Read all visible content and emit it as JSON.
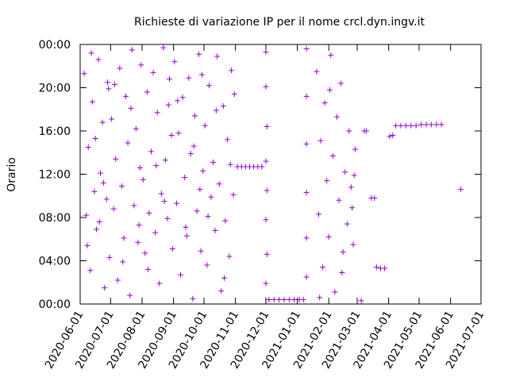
{
  "chart_data": {
    "type": "scatter",
    "title": "Richieste di variazione IP per il nome crcl.dyn.ingv.it",
    "y_label": "Orario",
    "color": "#9400d3",
    "marker": "+",
    "x": [
      "2020-06-05",
      "2020-06-07",
      "2020-06-09",
      "2020-06-11",
      "2020-06-13",
      "2020-06-15",
      "2020-06-17",
      "2020-06-19",
      "2020-06-21",
      "2020-06-23",
      "2020-06-25",
      "2020-06-27",
      "2020-06-29",
      "2020-06-08",
      "2020-06-12",
      "2020-06-16",
      "2020-06-20",
      "2020-06-24",
      "2020-06-28",
      "2020-06-30",
      "2020-07-02",
      "2020-07-04",
      "2020-07-06",
      "2020-07-08",
      "2020-07-10",
      "2020-07-12",
      "2020-07-14",
      "2020-07-16",
      "2020-07-18",
      "2020-07-20",
      "2020-07-22",
      "2020-07-24",
      "2020-07-26",
      "2020-07-28",
      "2020-07-30",
      "2020-07-05",
      "2020-07-13",
      "2020-07-21",
      "2020-07-29",
      "2020-07-31",
      "2020-08-02",
      "2020-08-04",
      "2020-08-06",
      "2020-08-08",
      "2020-08-10",
      "2020-08-12",
      "2020-08-14",
      "2020-08-16",
      "2020-08-18",
      "2020-08-20",
      "2020-08-22",
      "2020-08-24",
      "2020-08-26",
      "2020-08-28",
      "2020-08-30",
      "2020-08-07",
      "2020-08-15",
      "2020-08-23",
      "2020-08-27",
      "2020-08-31",
      "2020-09-02",
      "2020-09-04",
      "2020-09-06",
      "2020-09-08",
      "2020-09-10",
      "2020-09-12",
      "2020-09-14",
      "2020-09-16",
      "2020-09-18",
      "2020-09-20",
      "2020-09-22",
      "2020-09-24",
      "2020-09-26",
      "2020-09-28",
      "2020-09-30",
      "2020-09-05",
      "2020-09-13",
      "2020-09-21",
      "2020-09-27",
      "2020-09-29",
      "2020-10-02",
      "2020-10-04",
      "2020-10-06",
      "2020-10-08",
      "2020-10-10",
      "2020-10-12",
      "2020-10-14",
      "2020-10-16",
      "2020-10-18",
      "2020-10-20",
      "2020-10-22",
      "2020-10-24",
      "2020-10-26",
      "2020-10-28",
      "2020-10-30",
      "2020-10-05",
      "2020-10-13",
      "2020-10-21",
      "2020-10-27",
      "2020-10-31",
      "2020-11-03",
      "2020-11-07",
      "2020-11-11",
      "2020-11-15",
      "2020-11-19",
      "2020-11-23",
      "2020-11-27",
      "2020-12-01",
      "2020-12-01",
      "2020-12-02",
      "2020-12-01",
      "2020-12-02",
      "2020-12-01",
      "2020-12-02",
      "2020-12-01",
      "2020-12-04",
      "2020-12-09",
      "2020-12-14",
      "2020-12-19",
      "2020-12-24",
      "2020-12-29",
      "2021-01-03",
      "2021-01-07",
      "2021-01-10",
      "2021-01-10",
      "2021-01-10",
      "2021-01-10",
      "2021-01-10",
      "2021-01-10",
      "2021-01-20",
      "2021-01-22",
      "2021-01-24",
      "2021-01-26",
      "2021-01-28",
      "2021-01-30",
      "2021-02-01",
      "2021-02-03",
      "2021-02-05",
      "2021-02-07",
      "2021-02-09",
      "2021-02-11",
      "2021-02-13",
      "2021-02-15",
      "2021-02-17",
      "2021-02-19",
      "2021-02-21",
      "2021-02-23",
      "2021-02-25",
      "2021-02-27",
      "2021-01-23",
      "2021-02-02",
      "2021-02-14",
      "2021-02-24",
      "2021-02-26",
      "2021-03-05",
      "2021-03-08",
      "2021-03-10",
      "2021-03-15",
      "2021-03-18",
      "2021-03-20",
      "2021-03-24",
      "2021-03-28",
      "2021-04-02",
      "2021-04-05",
      "2021-04-08",
      "2021-04-13",
      "2021-04-18",
      "2021-04-23",
      "2021-04-28",
      "2021-05-03",
      "2021-05-08",
      "2021-05-13",
      "2021-05-18",
      "2021-05-23",
      "2021-06-11"
    ],
    "values": [
      21.3,
      8.2,
      14.5,
      3.1,
      18.7,
      10.4,
      6.9,
      22.6,
      12.1,
      16.8,
      1.5,
      9.7,
      19.9,
      5.4,
      23.2,
      15.3,
      7.6,
      11.2,
      20.5,
      4.3,
      17.1,
      8.8,
      13.4,
      2.2,
      21.8,
      10.9,
      6.1,
      19.2,
      14.9,
      0.8,
      23.5,
      9.1,
      16.2,
      5.7,
      12.6,
      20.3,
      3.9,
      18.1,
      7.3,
      22.1,
      11.5,
      4.7,
      19.6,
      8.4,
      14.1,
      21.4,
      6.6,
      17.7,
      1.9,
      10.2,
      23.7,
      13.3,
      7.9,
      20.8,
      15.6,
      3.2,
      12.8,
      9.5,
      18.4,
      5.1,
      22.4,
      9.3,
      15.8,
      2.7,
      19.1,
      11.7,
      6.3,
      20.9,
      13.9,
      0.5,
      17.4,
      8.6,
      23.1,
      4.9,
      12.3,
      18.8,
      7.1,
      14.6,
      10.6,
      21.2,
      16.5,
      3.6,
      20.2,
      9.9,
      13.1,
      6.8,
      22.9,
      11.1,
      1.2,
      18.3,
      7.7,
      15.2,
      4.4,
      21.6,
      10.1,
      8.1,
      17.9,
      2.4,
      12.9,
      19.4,
      12.7,
      12.7,
      12.7,
      12.7,
      12.7,
      12.7,
      12.7,
      23.3,
      20.1,
      16.4,
      13.2,
      10.5,
      7.8,
      4.6,
      1.9,
      0.4,
      0.4,
      0.4,
      0.4,
      0.4,
      0.4,
      0.4,
      0.4,
      23.6,
      19.2,
      14.8,
      10.3,
      6.1,
      2.5,
      21.5,
      8.3,
      15.1,
      3.4,
      18.6,
      11.4,
      6.2,
      23.0,
      13.7,
      1.1,
      17.3,
      9.6,
      20.4,
      4.8,
      12.2,
      7.4,
      16.0,
      10.8,
      5.5,
      14.3,
      0.6,
      19.8,
      2.9,
      8.9,
      11.9,
      0.3,
      16.0,
      16.0,
      9.8,
      9.8,
      3.4,
      3.3,
      3.3,
      15.5,
      15.6,
      16.5,
      16.5,
      16.5,
      16.5,
      16.5,
      16.6,
      16.6,
      16.6,
      16.6,
      16.6,
      10.6
    ],
    "xlim": [
      "2020-06-01",
      "2021-07-01"
    ],
    "xticks": [
      "2020-06-01",
      "2020-07-01",
      "2020-08-01",
      "2020-09-01",
      "2020-10-01",
      "2020-11-01",
      "2020-12-01",
      "2021-01-01",
      "2021-02-01",
      "2021-03-01",
      "2021-04-01",
      "2021-05-01",
      "2021-06-01",
      "2021-07-01"
    ],
    "ylim": [
      0,
      24
    ],
    "yticks": [
      {
        "value": 0,
        "label": "00:00"
      },
      {
        "value": 4,
        "label": "04:00"
      },
      {
        "value": 8,
        "label": "08:00"
      },
      {
        "value": 12,
        "label": "12:00"
      },
      {
        "value": 16,
        "label": "16:00"
      },
      {
        "value": 20,
        "label": "20:00"
      },
      {
        "value": 24,
        "label": "00:00"
      }
    ]
  }
}
